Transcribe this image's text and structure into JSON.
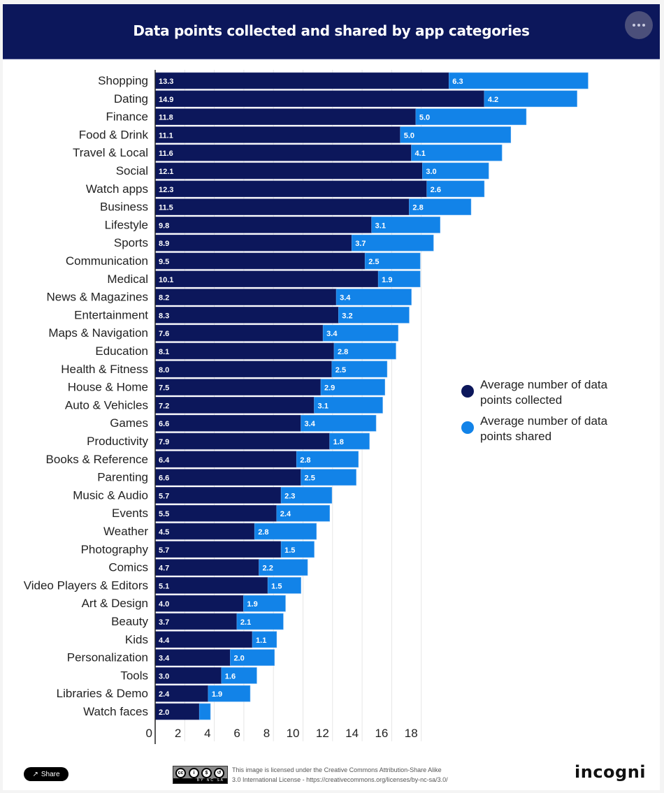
{
  "header": {
    "title": "Data points collected and shared by app categories",
    "more_icon": "ellipsis-icon"
  },
  "colors": {
    "collected": "#0c175b",
    "shared": "#1283e8",
    "header_bg": "#0c175b"
  },
  "legend": {
    "items": [
      {
        "label": "Average number of data points collected",
        "color": "#0c175b"
      },
      {
        "label": "Average number of data points shared",
        "color": "#1283e8"
      }
    ],
    "placement": "right"
  },
  "chart_data": {
    "type": "bar",
    "orientation": "horizontal",
    "stacked": true,
    "title": "Data points collected and shared by app categories",
    "xlabel": "",
    "ylabel": "",
    "xlim": [
      0,
      18
    ],
    "x_ticks": [
      "0",
      "2",
      "4",
      "6",
      "8",
      "10",
      "12",
      "14",
      "16",
      "18"
    ],
    "grid": true,
    "legend_position": "right",
    "categories": [
      "Shopping",
      "Dating",
      "Finance",
      "Food & Drink",
      "Travel & Local",
      "Social",
      "Watch apps",
      "Business",
      "Lifestyle",
      "Sports",
      "Communication",
      "Medical",
      "News & Magazines",
      "Entertainment",
      "Maps & Navigation",
      "Education",
      "Health & Fitness",
      "House & Home",
      "Auto & Vehicles",
      "Games",
      "Productivity",
      "Books & Reference",
      "Parenting",
      "Music & Audio",
      "Events",
      "Weather",
      "Photography",
      "Comics",
      "Video Players & Editors",
      "Art & Design",
      "Beauty",
      "Kids",
      "Personalization",
      "Tools",
      "Libraries & Demo",
      "Watch faces"
    ],
    "series": [
      {
        "name": "Average number of data points collected",
        "values": [
          13.3,
          14.9,
          11.8,
          11.1,
          11.6,
          12.1,
          12.3,
          11.5,
          9.8,
          8.9,
          9.5,
          10.1,
          8.2,
          8.3,
          7.6,
          8.1,
          8.0,
          7.5,
          7.2,
          6.6,
          7.9,
          6.4,
          6.6,
          5.7,
          5.5,
          4.5,
          5.7,
          4.7,
          5.1,
          4.0,
          3.7,
          4.4,
          3.4,
          3.0,
          2.4,
          2.0
        ],
        "labels": [
          "13.3",
          "14.9",
          "11.8",
          "11.1",
          "11.6",
          "12.1",
          "12.3",
          "11.5",
          "9.8",
          "8.9",
          "9.5",
          "10.1",
          "8.2",
          "8.3",
          "7.6",
          "8.1",
          "8.0",
          "7.5",
          "7.2",
          "6.6",
          "7.9",
          "6.4",
          "6.6",
          "5.7",
          "5.5",
          "4.5",
          "5.7",
          "4.7",
          "5.1",
          "4.0",
          "3.7",
          "4.4",
          "3.4",
          "3.0",
          "2.4",
          "2.0"
        ]
      },
      {
        "name": "Average number of data points shared",
        "values": [
          6.3,
          4.2,
          5.0,
          5.0,
          4.1,
          3.0,
          2.6,
          2.8,
          3.1,
          3.7,
          2.5,
          1.9,
          3.4,
          3.2,
          3.4,
          2.8,
          2.5,
          2.9,
          3.1,
          3.4,
          1.8,
          2.8,
          2.5,
          2.3,
          2.4,
          2.8,
          1.5,
          2.2,
          1.5,
          1.9,
          2.1,
          1.1,
          2.0,
          1.6,
          1.9,
          0.5
        ],
        "labels": [
          "6.3",
          "4.2",
          "5.0",
          "5.0",
          "4.1",
          "3.0",
          "2.6",
          "2.8",
          "3.1",
          "3.7",
          "2.5",
          "1.9",
          "3.4",
          "3.2",
          "3.4",
          "2.8",
          "2.5",
          "2.9",
          "3.1",
          "3.4",
          "1.8",
          "2.8",
          "2.5",
          "2.3",
          "2.4",
          "2.8",
          "1.5",
          "2.2",
          "1.5",
          "1.9",
          "2.1",
          "1.1",
          "2.0",
          "1.6",
          "1.9",
          ""
        ]
      }
    ]
  },
  "footer": {
    "share_label": "Share",
    "share_icon": "share-icon",
    "cc_badge_text": "BY NC SA",
    "license_line1": "This image is licensed under the Creative Commons Attribution-Share Alike",
    "license_line2": "3.0 International License - https://creativecommons.org/licenses/by-nc-sa/3.0/",
    "brand": "incogni"
  }
}
